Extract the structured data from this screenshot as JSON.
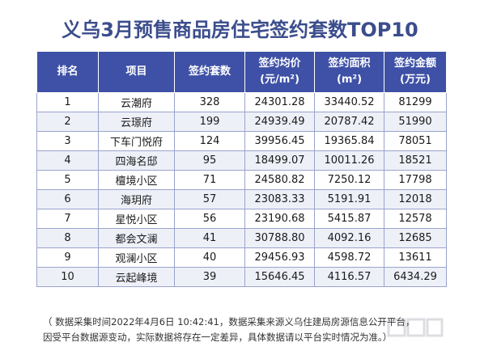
{
  "title": "义乌3月预售商品房住宅签约套数TOP10",
  "table": {
    "headers": [
      {
        "line1": "排名",
        "line2": ""
      },
      {
        "line1": "项目",
        "line2": ""
      },
      {
        "line1": "签约套数",
        "line2": ""
      },
      {
        "line1": "签约均价",
        "line2": "(元/m²)"
      },
      {
        "line1": "签约面积",
        "line2": "(m²)"
      },
      {
        "line1": "签约金额",
        "line2": "(万元)"
      }
    ],
    "rows": [
      {
        "rank": "1",
        "project": "云潮府",
        "units": "328",
        "avg_price": "24301.28",
        "area": "33440.52",
        "amount": "81299"
      },
      {
        "rank": "2",
        "project": "云璟府",
        "units": "199",
        "avg_price": "24939.49",
        "area": "20787.42",
        "amount": "51990"
      },
      {
        "rank": "3",
        "project": "下车门悦府",
        "units": "124",
        "avg_price": "39956.45",
        "area": "19365.84",
        "amount": "78051"
      },
      {
        "rank": "4",
        "project": "四海名邸",
        "units": "95",
        "avg_price": "18499.07",
        "area": "10011.26",
        "amount": "18521"
      },
      {
        "rank": "5",
        "project": "檀境小区",
        "units": "71",
        "avg_price": "24580.82",
        "area": "7250.12",
        "amount": "17798"
      },
      {
        "rank": "6",
        "project": "海玥府",
        "units": "57",
        "avg_price": "23083.33",
        "area": "5191.91",
        "amount": "12018"
      },
      {
        "rank": "7",
        "project": "星悦小区",
        "units": "56",
        "avg_price": "23190.68",
        "area": "5415.87",
        "amount": "12578"
      },
      {
        "rank": "8",
        "project": "都会文澜",
        "units": "41",
        "avg_price": "30788.80",
        "area": "4092.16",
        "amount": "12685"
      },
      {
        "rank": "9",
        "project": "观澜小区",
        "units": "40",
        "avg_price": "29456.93",
        "area": "4598.72",
        "amount": "13611"
      },
      {
        "rank": "10",
        "project": "云起峰境",
        "units": "39",
        "avg_price": "15646.45",
        "area": "4116.57",
        "amount": "6434.29"
      }
    ]
  },
  "note": {
    "line1": "（ 数据采集时间2022年4月6日 10:42:41，数据采集来源义乌住建局房源信息公开平台，",
    "line2": "因受平台数据源变动，实际数据将存在一定差异，具体数据请以平台实时情况为准。）"
  },
  "colors": {
    "title": "#3b4d8c",
    "header_bg": "#3e51a6",
    "header_text": "#ffffff",
    "alt_row": "#eef0f8",
    "grid": "#9aa4cc"
  },
  "icons": {
    "watermark": "logo-watermark",
    "corner_logo": "corner-logo-watermark"
  }
}
